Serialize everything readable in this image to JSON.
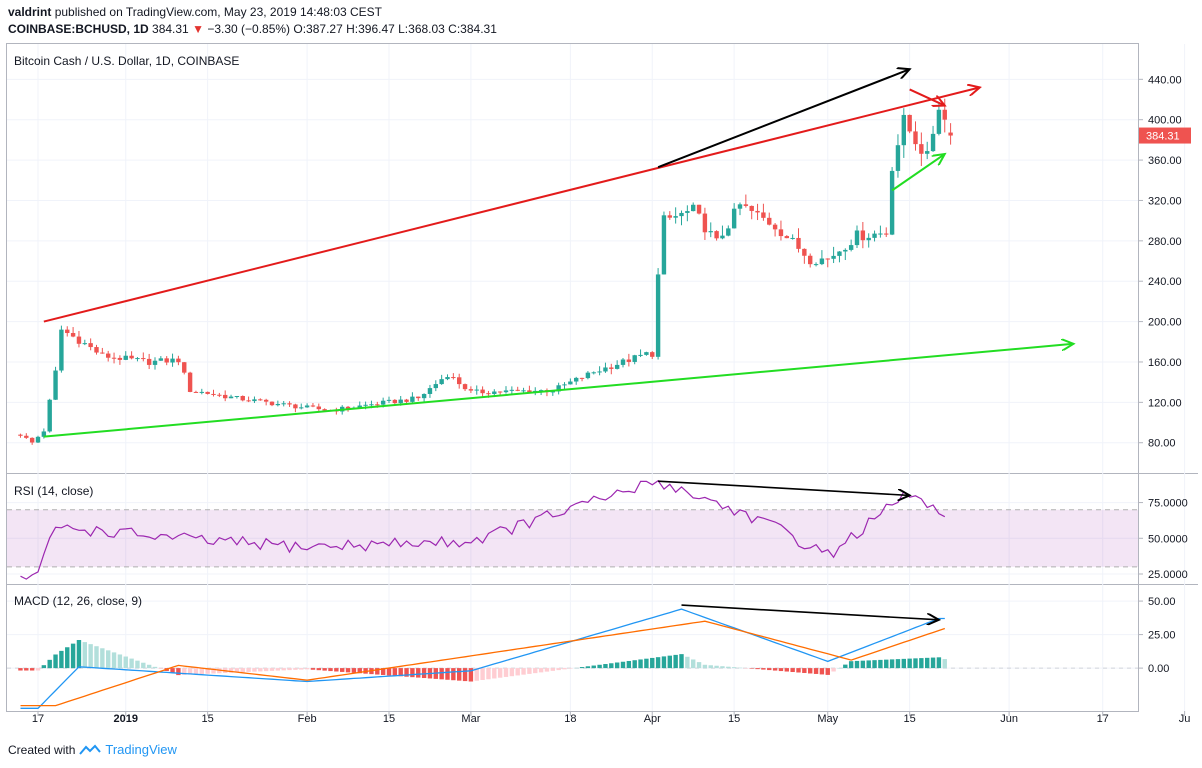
{
  "header": {
    "author": "valdrint",
    "published_text": "published on TradingView.com, May 23, 2019 14:48:03 CEST",
    "symbol": "COINBASE:BCHUSD, 1D",
    "price": "384.31",
    "change": "−3.30 (−0.85%)",
    "ohlc": "O:387.27 H:396.47 L:368.03 C:384.31"
  },
  "footer": {
    "created_with": "Created with",
    "brand": "TradingView"
  },
  "colors": {
    "up": "#26a69a",
    "down": "#ef5350",
    "rsi": "#9c27b0",
    "macd": "#2196f3",
    "signal": "#ff6d00",
    "trend_red": "#e31b1b",
    "trend_green": "#22dd22"
  },
  "chart_data": [
    {
      "type": "candlestick",
      "title": "Bitcoin Cash / U.S. Dollar, 1D, COINBASE",
      "last_price_label": "384.31",
      "y_ticks": [
        "80.00",
        "120.00",
        "160.00",
        "200.00",
        "240.00",
        "280.00",
        "320.00",
        "360.00",
        "400.00",
        "440.00"
      ],
      "x_ticks": [
        "17",
        "2019",
        "15",
        "Feb",
        "15",
        "Mar",
        "18",
        "Apr",
        "15",
        "May",
        "15",
        "Jun",
        "17",
        "Ju"
      ],
      "ylim": [
        50,
        475
      ],
      "dates": [
        "2018-12-14",
        "2019-01-01",
        "2019-02-01",
        "2019-03-01",
        "2019-04-01",
        "2019-05-01",
        "2019-05-22"
      ],
      "closes_approx": [
        90,
        162,
        108,
        132,
        270,
        290,
        384.31
      ],
      "last_candle": {
        "open": 387.27,
        "high": 396.47,
        "low": 368.03,
        "close": 384.31
      },
      "trendlines": [
        {
          "color": "red",
          "from": [
            "2018-12-18",
            200
          ],
          "to": [
            "2019-05-27",
            432
          ]
        },
        {
          "color": "green",
          "from": [
            "2018-12-18",
            86
          ],
          "to": [
            "2019-06-12",
            178
          ]
        },
        {
          "color": "black",
          "from": [
            "2019-04-02",
            353
          ],
          "to": [
            "2019-05-15",
            450
          ]
        },
        {
          "color": "red",
          "from": [
            "2019-05-15",
            430
          ],
          "to": [
            "2019-05-21",
            414
          ]
        },
        {
          "color": "green",
          "from": [
            "2019-05-12",
            330
          ],
          "to": [
            "2019-05-21",
            366
          ]
        }
      ],
      "grid": true
    },
    {
      "type": "line",
      "title": "RSI (14, close)",
      "y_ticks": [
        "25.0000",
        "50.0000",
        "75.0000"
      ],
      "band": [
        30,
        70
      ],
      "ylim": [
        18,
        95
      ],
      "points": [
        [
          "2018-12-14",
          22
        ],
        [
          "2018-12-17",
          25
        ],
        [
          "2018-12-20",
          58
        ],
        [
          "2019-01-15",
          48
        ],
        [
          "2019-02-01",
          44
        ],
        [
          "2019-03-01",
          48
        ],
        [
          "2019-04-02",
          90
        ],
        [
          "2019-04-20",
          62
        ],
        [
          "2019-05-01",
          38
        ],
        [
          "2019-05-15",
          82
        ],
        [
          "2019-05-22",
          61
        ]
      ],
      "divergence": {
        "from": [
          "2019-04-02",
          90
        ],
        "to": [
          "2019-05-15",
          80
        ]
      }
    },
    {
      "type": "histogram+line",
      "title": "MACD (12, 26, close, 9)",
      "y_ticks": [
        "0.00",
        "25.00",
        "50.00"
      ],
      "ylim": [
        -32,
        62
      ],
      "macd": [
        [
          "2018-12-17",
          -30
        ],
        [
          "2018-12-24",
          1
        ],
        [
          "2019-02-01",
          -10
        ],
        [
          "2019-03-01",
          -2
        ],
        [
          "2019-04-06",
          44
        ],
        [
          "2019-05-01",
          5
        ],
        [
          "2019-05-20",
          37
        ]
      ],
      "signal": [
        [
          "2018-12-20",
          -28
        ],
        [
          "2019-01-10",
          2
        ],
        [
          "2019-02-01",
          -9
        ],
        [
          "2019-04-10",
          35
        ],
        [
          "2019-05-05",
          6
        ],
        [
          "2019-05-22",
          31
        ]
      ],
      "divergence": {
        "from": [
          "2019-04-06",
          47
        ],
        "to": [
          "2019-05-20",
          36
        ]
      }
    }
  ]
}
